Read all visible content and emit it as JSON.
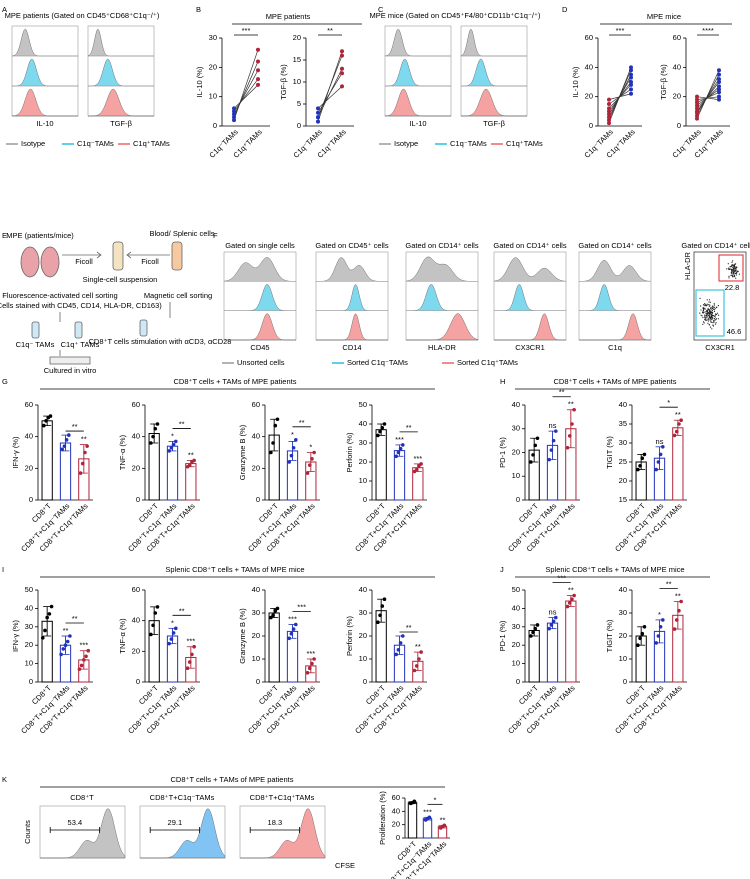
{
  "chart_data": [
    {
      "type": "paired",
      "ylabel": "IL-10 (%)",
      "categories": [
        "C1q⁻TAMs",
        "C1q⁺TAMs"
      ],
      "pairs": [
        [
          2,
          26
        ],
        [
          3,
          22
        ],
        [
          4,
          19
        ],
        [
          5,
          16
        ],
        [
          6,
          14
        ]
      ],
      "colors": [
        "#2233bb",
        "#b0243a"
      ],
      "ylim": [
        0,
        30
      ],
      "yticks": [
        0,
        10,
        20,
        30
      ],
      "bracket": {
        "from": 0,
        "to": 1,
        "text": "***"
      }
    },
    {
      "type": "paired",
      "ylabel": "TGF-β (%)",
      "categories": [
        "C1q⁻TAMs",
        "C1q⁺TAMs"
      ],
      "pairs": [
        [
          1,
          17
        ],
        [
          2,
          16
        ],
        [
          2,
          13
        ],
        [
          3,
          12
        ],
        [
          4,
          9
        ]
      ],
      "colors": [
        "#2233bb",
        "#b0243a"
      ],
      "ylim": [
        0,
        20
      ],
      "yticks": [
        0,
        5,
        10,
        15,
        20
      ],
      "bracket": {
        "from": 0,
        "to": 1,
        "text": "**"
      }
    },
    {
      "type": "paired",
      "ylabel": "IL-10 (%)",
      "categories": [
        "C1q⁻TAMs",
        "C1q⁺TAMs"
      ],
      "pairs": [
        [
          2,
          40
        ],
        [
          4,
          38
        ],
        [
          6,
          35
        ],
        [
          8,
          33
        ],
        [
          10,
          30
        ],
        [
          12,
          28
        ],
        [
          15,
          25
        ],
        [
          18,
          22
        ]
      ],
      "colors": [
        "#b0243a",
        "#2233bb"
      ],
      "ylim": [
        0,
        60
      ],
      "yticks": [
        0,
        20,
        40,
        60
      ],
      "bracket": {
        "from": 0,
        "to": 1,
        "text": "***"
      }
    },
    {
      "type": "paired",
      "ylabel": "TGF-β (%)",
      "categories": [
        "C1q⁻TAMs",
        "C1q⁺TAMs"
      ],
      "pairs": [
        [
          5,
          38
        ],
        [
          7,
          35
        ],
        [
          9,
          32
        ],
        [
          10,
          30
        ],
        [
          12,
          27
        ],
        [
          14,
          25
        ],
        [
          16,
          23
        ],
        [
          18,
          20
        ],
        [
          20,
          18
        ]
      ],
      "colors": [
        "#b0243a",
        "#2233bb"
      ],
      "ylim": [
        0,
        60
      ],
      "yticks": [
        0,
        20,
        40,
        60
      ],
      "bracket": {
        "from": 0,
        "to": 1,
        "text": "****"
      }
    },
    {
      "type": "bar",
      "ylabel": "IFN-γ (%)",
      "categories": [
        "CD8⁺T",
        "CD8⁺T+C1q⁻TAMs",
        "CD8⁺T+C1q⁺TAMs"
      ],
      "values": [
        50,
        36,
        26
      ],
      "errors": [
        3,
        5,
        9
      ],
      "points": [
        [
          47,
          50,
          52,
          53
        ],
        [
          32,
          34,
          38,
          41
        ],
        [
          17,
          23,
          30,
          34
        ]
      ],
      "colors": [
        "#000000",
        "#2233bb",
        "#b0243a"
      ],
      "ylim": [
        0,
        60
      ],
      "yticks": [
        0,
        20,
        40,
        60
      ],
      "marks": [
        null,
        null,
        "**"
      ],
      "bracket": {
        "from": 1,
        "to": 2,
        "text": "**"
      }
    },
    {
      "type": "bar",
      "ylabel": "TNF-α (%)",
      "categories": [
        "CD8⁺T",
        "CD8⁺T+C1q⁻TAMs",
        "CD8⁺T+C1q⁺TAMs"
      ],
      "values": [
        42,
        34,
        23
      ],
      "errors": [
        6,
        3,
        2
      ],
      "points": [
        [
          36,
          40,
          45,
          48
        ],
        [
          31,
          33,
          35,
          37
        ],
        [
          21,
          22,
          24,
          25
        ]
      ],
      "colors": [
        "#000000",
        "#2233bb",
        "#b0243a"
      ],
      "ylim": [
        0,
        60
      ],
      "yticks": [
        0,
        20,
        40,
        60
      ],
      "marks": [
        null,
        "*",
        "**"
      ],
      "bracket": {
        "from": 1,
        "to": 2,
        "text": "**"
      }
    },
    {
      "type": "bar",
      "ylabel": "Granzyme B (%)",
      "categories": [
        "CD8⁺T",
        "CD8⁺T+C1q⁻TAMs",
        "CD8⁺T+C1q⁺TAMs"
      ],
      "values": [
        41,
        31,
        24
      ],
      "errors": [
        10,
        6,
        6
      ],
      "points": [
        [
          30,
          36,
          47,
          51
        ],
        [
          24,
          28,
          33,
          38
        ],
        [
          17,
          22,
          26,
          30
        ]
      ],
      "colors": [
        "#000000",
        "#2233bb",
        "#b0243a"
      ],
      "ylim": [
        0,
        60
      ],
      "yticks": [
        0,
        20,
        40,
        60
      ],
      "marks": [
        null,
        "*",
        "*"
      ],
      "bracket": {
        "from": 1,
        "to": 2,
        "text": "**"
      }
    },
    {
      "type": "bar",
      "ylabel": "Perforin (%)",
      "categories": [
        "CD8⁺T",
        "CD8⁺T+C1q⁻TAMs",
        "CD8⁺T+C1q⁺TAMs"
      ],
      "values": [
        37,
        26,
        17
      ],
      "errors": [
        3,
        3,
        2
      ],
      "points": [
        [
          34,
          36,
          38,
          40
        ],
        [
          23,
          25,
          27,
          29
        ],
        [
          15,
          16,
          18,
          19
        ]
      ],
      "colors": [
        "#000000",
        "#2233bb",
        "#b0243a"
      ],
      "ylim": [
        0,
        50
      ],
      "yticks": [
        0,
        10,
        20,
        30,
        40,
        50
      ],
      "marks": [
        null,
        "***",
        "***"
      ],
      "bracket": {
        "from": 1,
        "to": 2,
        "text": "**"
      }
    },
    {
      "type": "bar",
      "ylabel": "PD-1 (%)",
      "categories": [
        "CD8⁺T",
        "CD8⁺T+C1q⁻TAMs",
        "CD8⁺T+C1q⁺TAMs"
      ],
      "values": [
        21,
        23,
        30
      ],
      "errors": [
        5,
        6,
        8
      ],
      "points": [
        [
          16,
          19,
          23,
          26
        ],
        [
          17,
          21,
          25,
          29
        ],
        [
          22,
          27,
          32,
          38
        ]
      ],
      "colors": [
        "#000000",
        "#2233bb",
        "#b0243a"
      ],
      "ylim": [
        0,
        40
      ],
      "yticks": [
        0,
        10,
        20,
        30,
        40
      ],
      "marks": [
        null,
        "ns",
        "**"
      ],
      "bracket": {
        "from": 1,
        "to": 2,
        "text": "**"
      }
    },
    {
      "type": "bar",
      "ylabel": "TIGIT (%)",
      "categories": [
        "CD8⁺T",
        "CD8⁺T+C1q⁻TAMs",
        "CD8⁺T+C1q⁺TAMs"
      ],
      "values": [
        25,
        26,
        34
      ],
      "errors": [
        2,
        3,
        2
      ],
      "points": [
        [
          23,
          24,
          26,
          27
        ],
        [
          23,
          25,
          27,
          29
        ],
        [
          32,
          33,
          35,
          36
        ]
      ],
      "colors": [
        "#000000",
        "#2233bb",
        "#b0243a"
      ],
      "ylim": [
        15,
        40
      ],
      "yticks": [
        15,
        20,
        25,
        30,
        35,
        40
      ],
      "marks": [
        null,
        "ns",
        "**"
      ],
      "bracket": {
        "from": 1,
        "to": 2,
        "text": "*"
      }
    },
    {
      "type": "bar",
      "ylabel": "IFN-γ (%)",
      "categories": [
        "CD8⁺T",
        "CD8⁺T+C1q⁻TAMs",
        "CD8⁺T+C1q⁺TAMs"
      ],
      "values": [
        33,
        20,
        12
      ],
      "errors": [
        8,
        5,
        5
      ],
      "points": [
        [
          24,
          28,
          35,
          37,
          41
        ],
        [
          15,
          18,
          20,
          22,
          25
        ],
        [
          7,
          9,
          12,
          14,
          17
        ]
      ],
      "colors": [
        "#000000",
        "#2233bb",
        "#b0243a"
      ],
      "ylim": [
        0,
        50
      ],
      "yticks": [
        0,
        10,
        20,
        30,
        40,
        50
      ],
      "marks": [
        null,
        "**",
        "***"
      ],
      "bracket": {
        "from": 1,
        "to": 2,
        "text": "**"
      }
    },
    {
      "type": "bar",
      "ylabel": "TNF-α (%)",
      "categories": [
        "CD8⁺T",
        "CD8⁺T+C1q⁻TAMs",
        "CD8⁺T+C1q⁺TAMs"
      ],
      "values": [
        40,
        30,
        16
      ],
      "errors": [
        9,
        5,
        7
      ],
      "points": [
        [
          31,
          37,
          45,
          49
        ],
        [
          25,
          28,
          32,
          35
        ],
        [
          9,
          13,
          18,
          23
        ]
      ],
      "colors": [
        "#000000",
        "#2233bb",
        "#b0243a"
      ],
      "ylim": [
        0,
        60
      ],
      "yticks": [
        0,
        20,
        40,
        60
      ],
      "marks": [
        null,
        "*",
        "***"
      ],
      "bracket": {
        "from": 1,
        "to": 2,
        "text": "**"
      }
    },
    {
      "type": "bar",
      "ylabel": "Granzyme B (%)",
      "categories": [
        "CD8⁺T",
        "CD8⁺T+C1q⁻TAMs",
        "CD8⁺T+C1q⁺TAMs"
      ],
      "values": [
        30,
        22,
        7
      ],
      "errors": [
        2,
        3,
        3
      ],
      "points": [
        [
          28,
          29,
          31,
          32
        ],
        [
          19,
          21,
          23,
          25
        ],
        [
          4,
          6,
          8,
          10
        ]
      ],
      "colors": [
        "#000000",
        "#2233bb",
        "#b0243a"
      ],
      "ylim": [
        0,
        40
      ],
      "yticks": [
        0,
        10,
        20,
        30,
        40
      ],
      "marks": [
        null,
        "***",
        "***"
      ],
      "bracket": {
        "from": 1,
        "to": 2,
        "text": "***"
      }
    },
    {
      "type": "bar",
      "ylabel": "Perforin (%)",
      "categories": [
        "CD8⁺T",
        "CD8⁺T+C1q⁻TAMs",
        "CD8⁺T+C1q⁺TAMs"
      ],
      "values": [
        31,
        16,
        9
      ],
      "errors": [
        5,
        4,
        4
      ],
      "points": [
        [
          26,
          29,
          33,
          36
        ],
        [
          12,
          14,
          17,
          20
        ],
        [
          5,
          7,
          10,
          13
        ]
      ],
      "colors": [
        "#000000",
        "#2233bb",
        "#b0243a"
      ],
      "ylim": [
        0,
        40
      ],
      "yticks": [
        0,
        10,
        20,
        30,
        40
      ],
      "marks": [
        null,
        null,
        "**"
      ],
      "bracket": {
        "from": 1,
        "to": 2,
        "text": "**"
      }
    },
    {
      "type": "bar",
      "ylabel": "PD-1 (%)",
      "categories": [
        "CD8⁺T",
        "CD8⁺T+C1q⁻TAMs",
        "CD8⁺T+C1q⁺TAMs"
      ],
      "values": [
        28,
        32,
        44
      ],
      "errors": [
        3,
        3,
        3
      ],
      "points": [
        [
          25,
          27,
          29,
          31
        ],
        [
          29,
          31,
          33,
          35
        ],
        [
          41,
          43,
          45,
          47
        ]
      ],
      "colors": [
        "#000000",
        "#2233bb",
        "#b0243a"
      ],
      "ylim": [
        0,
        50
      ],
      "yticks": [
        0,
        10,
        20,
        30,
        40,
        50
      ],
      "marks": [
        null,
        "ns",
        "**"
      ],
      "bracket": {
        "from": 1,
        "to": 2,
        "text": "***"
      }
    },
    {
      "type": "bar",
      "ylabel": "TIGIT (%)",
      "categories": [
        "CD8⁺T",
        "CD8⁺T+C1q⁻TAMs",
        "CD8⁺T+C1q⁺TAMs"
      ],
      "values": [
        20,
        22,
        29
      ],
      "errors": [
        4,
        5,
        6
      ],
      "points": [
        [
          16,
          19,
          21,
          24
        ],
        [
          17,
          20,
          24,
          27
        ],
        [
          23,
          27,
          31,
          35
        ]
      ],
      "colors": [
        "#000000",
        "#2233bb",
        "#b0243a"
      ],
      "ylim": [
        0,
        40
      ],
      "yticks": [
        0,
        10,
        20,
        30,
        40
      ],
      "marks": [
        null,
        "*",
        "**"
      ],
      "bracket": {
        "from": 1,
        "to": 2,
        "text": "**"
      }
    },
    {
      "type": "bar",
      "ylabel": "Proliferation (%)",
      "categories": [
        "CD8⁺T",
        "CD8⁺T+C1q⁻TAMs",
        "CD8⁺T+C1q⁺TAMs"
      ],
      "values": [
        53,
        29,
        17
      ],
      "errors": [
        1.5,
        2,
        2
      ],
      "points": [
        [
          52,
          53,
          55
        ],
        [
          27,
          29,
          31
        ],
        [
          15,
          17,
          19
        ]
      ],
      "colors": [
        "#000000",
        "#2233bb",
        "#b0243a"
      ],
      "ylim": [
        0,
        60
      ],
      "yticks": [
        0,
        20,
        40,
        60
      ],
      "marks": [
        null,
        "***",
        "**"
      ],
      "bracket": {
        "from": 1,
        "to": 2,
        "text": "*"
      }
    }
  ],
  "figure": {
    "panel_letters": [
      "A",
      "B",
      "C",
      "D",
      "E",
      "F",
      "G",
      "H",
      "I",
      "J",
      "K"
    ],
    "colors": {
      "gray": "#b4b4b4",
      "cyan": "#5fd0ea",
      "red": "#f28b8b",
      "blue": "#62b4f0"
    },
    "A": {
      "title": "MPE patients (Gated on CD45⁺CD68⁺C1q⁻/⁺)",
      "markers": [
        "IL-10",
        "TGF-β"
      ],
      "legend": [
        "Isotype",
        "C1q⁻TAMs",
        "C1q⁺TAMs"
      ]
    },
    "B": {
      "title": "MPE patients"
    },
    "C": {
      "title": "MPE mice (Gated on CD45⁺F4/80⁺CD11b⁺C1q⁻/⁺)",
      "markers": [
        "IL-10",
        "TGF-β"
      ],
      "legend": [
        "Isotype",
        "C1q⁻TAMs",
        "C1q⁺TAMs"
      ]
    },
    "D": {
      "title": "MPE mice"
    },
    "E": {
      "source1": "MPE (patients/mice)",
      "source2": "Blood/ Splenic cells",
      "ficoll": [
        "Ficoll",
        "Ficoll"
      ],
      "suspension": "Single-cell suspension",
      "facs": "Fluorescence-activated cell sorting",
      "stain": "(Cells stained with CD45, CD14, HLA-DR, CD163)",
      "macs": "Magnetic cell sorting",
      "neg": "C1q⁻ TAMs",
      "pos": "C1q⁺ TAMs",
      "stim": "CD8⁺T cells stimulation with αCD3, αCD28",
      "culture": "Cultured in vitro"
    },
    "F": {
      "gates": [
        "Gated on single cells",
        "Gated on CD45⁺ cells",
        "Gated on CD14⁺ cells",
        "Gated on CD14⁺ cells",
        "Gated on CD14⁺ cells",
        "Gated on CD14⁺ cells"
      ],
      "markers": [
        "CD45",
        "CD14",
        "HLA-DR",
        "CX3CR1",
        "C1q"
      ],
      "dot_y": "HLA-DR",
      "dot_x": "CX3CR1",
      "gate_values": [
        22.8,
        46.6
      ],
      "legend": [
        "Unsorted cells",
        "Sorted C1q⁻TAMs",
        "Sorted C1q⁺TAMs"
      ]
    },
    "G": {
      "title": "CD8⁺T cells + TAMs of MPE patients"
    },
    "H": {
      "title": "CD8⁺T cells + TAMs of MPE patients"
    },
    "I": {
      "title": "Splenic CD8⁺T cells + TAMs of MPE mice"
    },
    "J": {
      "title": "Splenic CD8⁺T cells + TAMs of MPE mice"
    },
    "K": {
      "title": "CD8⁺T cells + TAMs of MPE patients",
      "samples": [
        "CD8⁺T",
        "CD8⁺T+C1q⁻TAMs",
        "CD8⁺T+C1q⁺TAMs"
      ],
      "percents": [
        53.4,
        29.1,
        18.3
      ],
      "ylabel": "Counts",
      "xlabel": "CFSE"
    }
  }
}
